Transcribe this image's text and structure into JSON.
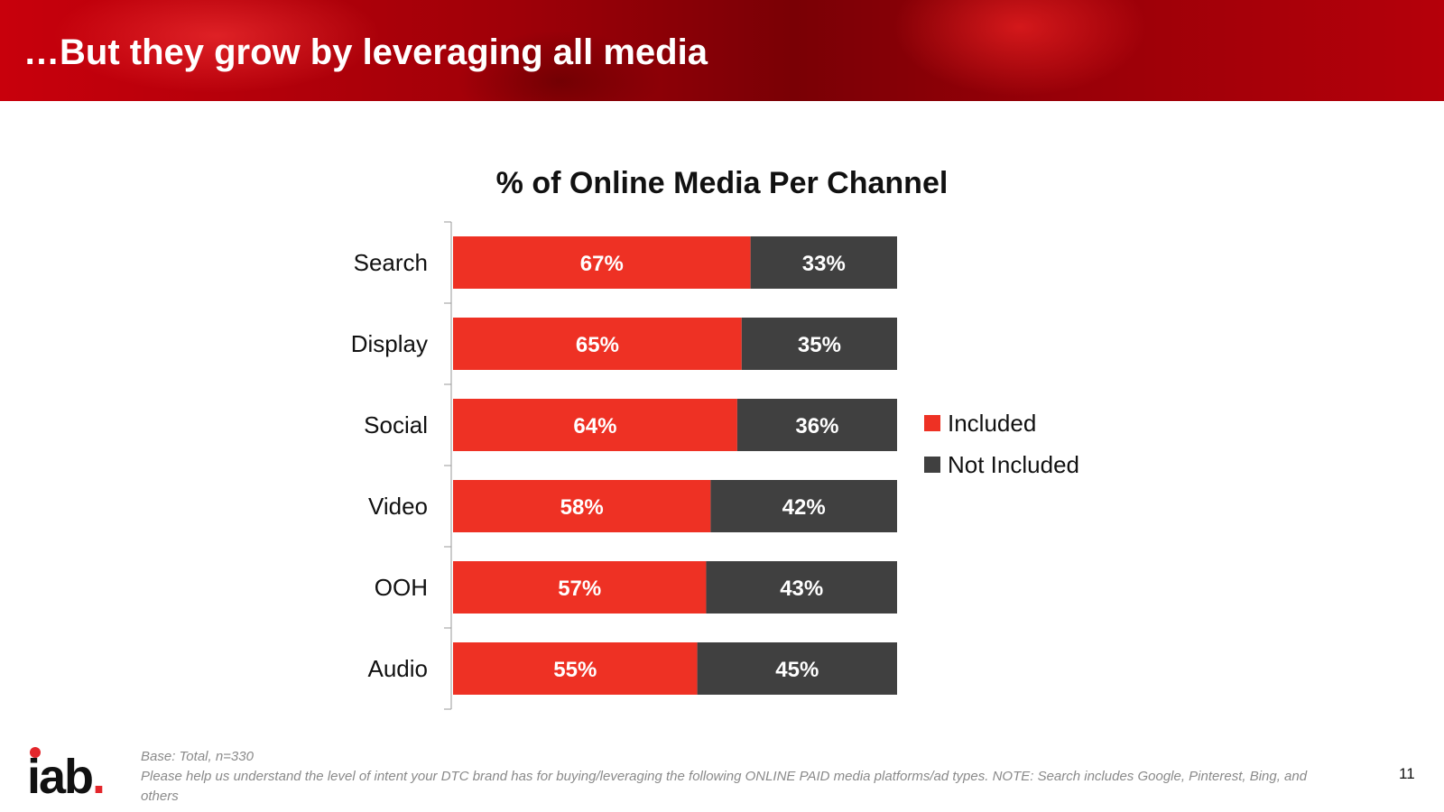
{
  "header": {
    "title": "…But they grow by leveraging all media"
  },
  "chart_data": {
    "type": "bar",
    "orientation": "horizontal",
    "stacked": true,
    "title": "% of Online Media Per Channel",
    "categories": [
      "Search",
      "Display",
      "Social",
      "Video",
      "OOH",
      "Audio"
    ],
    "series": [
      {
        "name": "Included",
        "color": "#ee3124",
        "values": [
          67,
          65,
          64,
          58,
          57,
          55
        ],
        "labels": [
          "67%",
          "65%",
          "64%",
          "58%",
          "57%",
          "55%"
        ]
      },
      {
        "name": "Not Included",
        "color": "#404040",
        "values": [
          33,
          35,
          36,
          42,
          43,
          45
        ],
        "labels": [
          "33%",
          "35%",
          "36%",
          "42%",
          "43%",
          "45%"
        ]
      }
    ],
    "xlim": [
      0,
      100
    ],
    "grid": false,
    "legend": "right"
  },
  "footer": {
    "logo_text": "iab",
    "logo_dot": ".",
    "base": "Base: Total, n=330",
    "question": "Please help us understand the level of intent your DTC brand has for buying/leveraging the following ONLINE PAID media platforms/ad types. NOTE: Search includes Google, Pinterest, Bing, and others",
    "page_number": "11"
  }
}
